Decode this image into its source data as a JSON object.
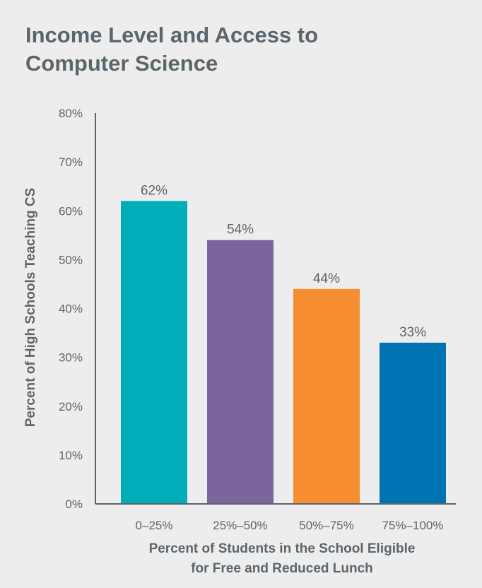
{
  "chart_data": {
    "type": "bar",
    "title_lines": [
      "Income Level and Access to",
      "Computer Science"
    ],
    "xlabel_lines": [
      "Percent of Students in the School Eligible",
      "for Free and Reduced Lunch"
    ],
    "ylabel": "Percent of High Schools Teaching CS",
    "categories": [
      "0–25%",
      "25%–50%",
      "50%–75%",
      "75%–100%"
    ],
    "values": [
      62,
      54,
      44,
      33
    ],
    "data_labels": [
      "62%",
      "54%",
      "44%",
      "33%"
    ],
    "ylim": [
      0,
      80
    ],
    "yticks": [
      0,
      10,
      20,
      30,
      40,
      50,
      60,
      70,
      80
    ],
    "ytick_labels": [
      "0%",
      "10%",
      "20%",
      "30%",
      "40%",
      "50%",
      "60%",
      "70%",
      "80%"
    ],
    "grid": false,
    "colors": [
      "#00adb8",
      "#7a669c",
      "#f68d31",
      "#0073b2"
    ],
    "axis_color": "#5b656c",
    "text_color": "#5b656c",
    "background": "#ededed"
  }
}
